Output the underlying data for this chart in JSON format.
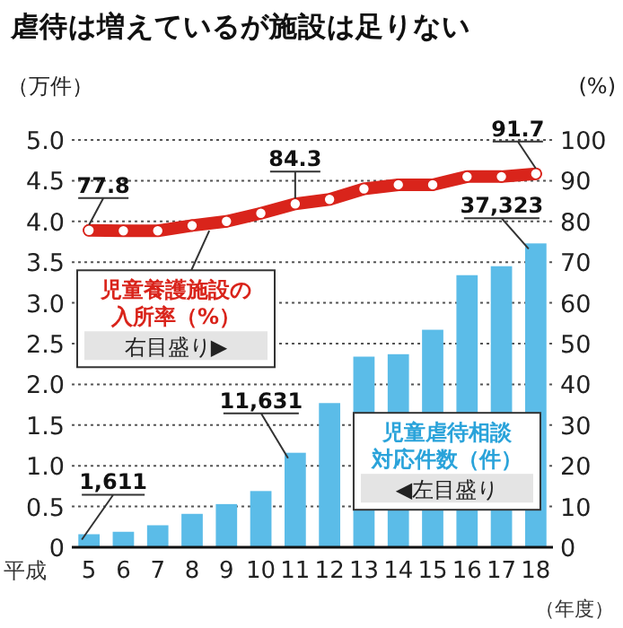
{
  "chart_data": {
    "type": "bar",
    "title": "虐待は増えているが施設は足りない",
    "ylabel": "（万件）",
    "y2label": "(%)",
    "xlabel": "（年度）",
    "categories": [
      "5",
      "6",
      "7",
      "8",
      "9",
      "10",
      "11",
      "12",
      "13",
      "14",
      "15",
      "16",
      "17",
      "18"
    ],
    "series": [
      {
        "name": "児童虐待相談対応件数（件）",
        "color": "#5bbce8",
        "values": [
          0.16,
          0.19,
          0.27,
          0.41,
          0.53,
          0.69,
          1.16,
          1.77,
          2.34,
          2.37,
          2.67,
          3.34,
          3.45,
          3.73
        ]
      },
      {
        "type": "line",
        "axis": "y2",
        "name": "児童養護施設の入所率（%）",
        "color": "#d9241b",
        "values": [
          77.8,
          77.7,
          77.7,
          79,
          80,
          82,
          84.3,
          85.4,
          88,
          89,
          89,
          91,
          91,
          91.7
        ],
        "value_labels": [
          "77.8",
          null,
          null,
          null,
          null,
          null,
          "84.3",
          null,
          null,
          null,
          null,
          null,
          null,
          "91.7"
        ]
      }
    ],
    "annotations": [
      "平成",
      "右目盛り▶",
      "◀左目盛り",
      {
        "text": "1,611",
        "x": "5",
        "y": 0.16
      },
      {
        "text": "11,631",
        "x": "11",
        "y": 1.16
      },
      {
        "text": "37,323",
        "x": "18",
        "y": 3.73
      }
    ],
    "ylim": [
      0,
      5
    ],
    "yticks": [
      0,
      {
        "value": 0.5,
        "label": "0.5"
      },
      {
        "value": 1,
        "label": "1.0"
      },
      {
        "value": 1.5,
        "label": "1.5"
      },
      {
        "value": 2,
        "label": "2.0"
      },
      {
        "value": 2.5,
        "label": "2.5"
      },
      {
        "value": 3,
        "label": "3.0"
      },
      {
        "value": 3.5,
        "label": "3.5"
      },
      {
        "value": 4,
        "label": "4.0"
      },
      {
        "value": 4.5,
        "label": "4.5"
      },
      {
        "value": 5,
        "label": "5.0"
      }
    ],
    "y2lim": [
      0,
      100
    ],
    "y2ticks": [
      0,
      10,
      20,
      30,
      40,
      50,
      60,
      70,
      80,
      90,
      100
    ],
    "grid": "y",
    "marker": "circle",
    "line_style": "solid"
  }
}
